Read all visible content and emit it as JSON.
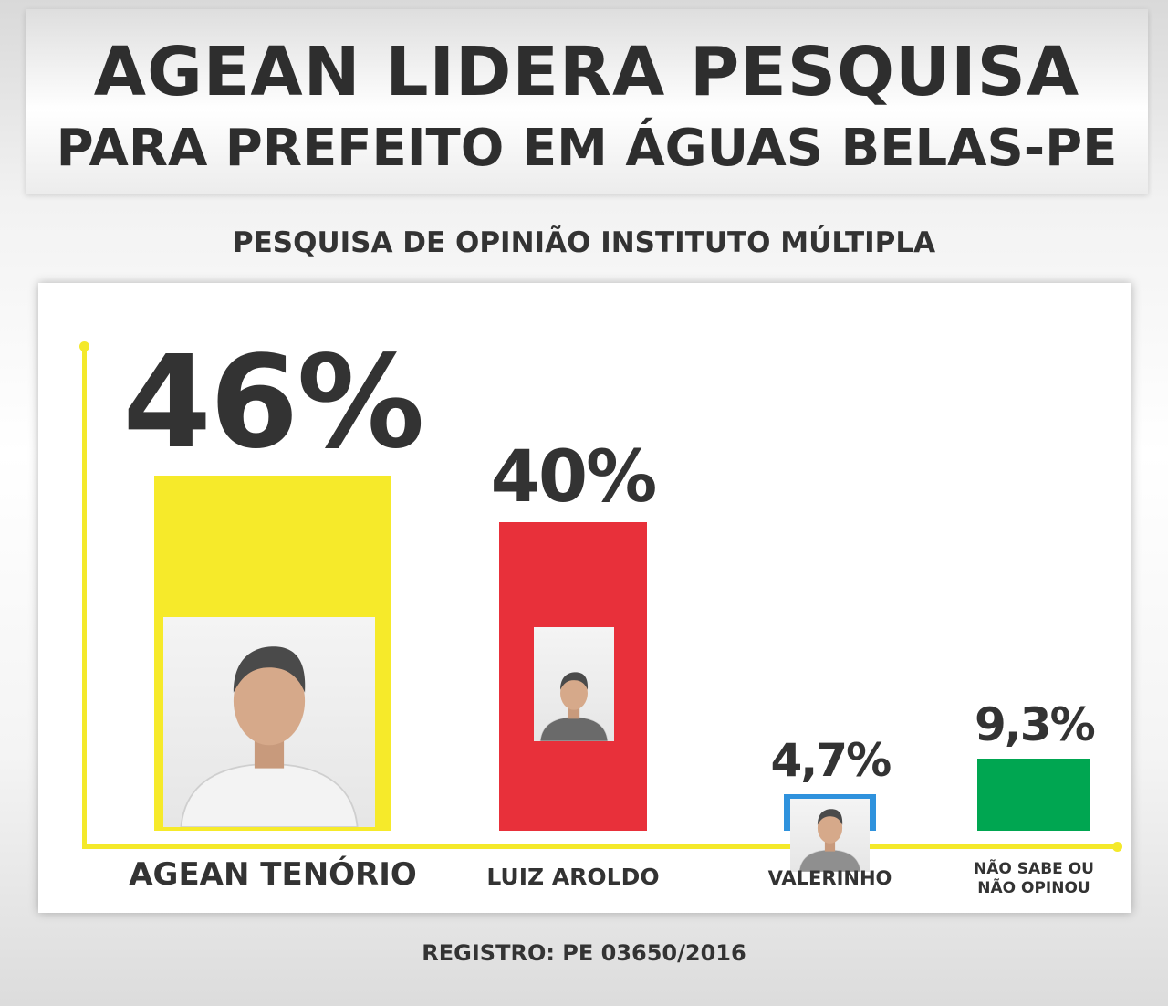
{
  "header": {
    "title_line1": "AGEAN LIDERA PESQUISA",
    "title_line2": "PARA PREFEITO EM ÁGUAS BELAS-PE",
    "subtitle": "PESQUISA DE OPINIÃO INSTITUTO MÚLTIPLA"
  },
  "footer": {
    "registro": "REGISTRO: PE 03650/2016"
  },
  "colors": {
    "axis": "#f4e92a",
    "agean": "#f6ea2a",
    "luiz": "#e8303a",
    "valerinho": "#2f92dd",
    "nao_sabe": "#00a651",
    "text": "#333333"
  },
  "chart_data": {
    "type": "bar",
    "title": "PESQUISA DE OPINIÃO INSTITUTO MÚLTIPLA",
    "categories": [
      "AGEAN TENÓRIO",
      "LUIZ AROLDO",
      "VALERINHO",
      "NÃO SABE OU NÃO OPINOU"
    ],
    "values": [
      46,
      40,
      4.7,
      9.3
    ],
    "value_labels": [
      "46%",
      "40%",
      "4,7%",
      "9,3%"
    ],
    "unit": "%",
    "colors": [
      "#f6ea2a",
      "#e8303a",
      "#2f92dd",
      "#00a651"
    ],
    "photo_icons": [
      "agean-photo-icon",
      "luiz-photo-icon",
      "valerinho-photo-icon",
      ""
    ],
    "grid": false,
    "legend": "none"
  }
}
